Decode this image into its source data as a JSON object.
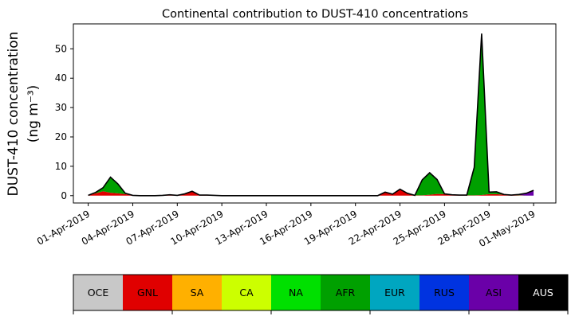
{
  "chart_data": {
    "type": "area",
    "stacked": true,
    "title": "Continental contribution to DUST-410 concentrations",
    "ylabel_line1": "DUST-410 concentration",
    "ylabel_line2": "(ng m⁻³)",
    "ylim": [
      -2.5,
      58.5
    ],
    "y_ticks": [
      0,
      10,
      20,
      30,
      40,
      50
    ],
    "xlim": [
      -1.0,
      31.5
    ],
    "x_tick_labels": [
      "01-Apr-2019",
      "04-Apr-2019",
      "07-Apr-2019",
      "10-Apr-2019",
      "13-Apr-2019",
      "16-Apr-2019",
      "19-Apr-2019",
      "22-Apr-2019",
      "25-Apr-2019",
      "28-Apr-2019",
      "01-May-2019"
    ],
    "x_start": "2019-04-01",
    "x_tick_step_days": 3,
    "x": [
      0,
      0.5,
      1,
      1.5,
      2,
      2.5,
      3,
      3.5,
      4,
      4.5,
      5,
      5.5,
      6,
      6.5,
      7,
      7.5,
      8,
      8.5,
      9,
      9.5,
      10,
      10.5,
      11,
      11.5,
      12,
      12.5,
      13,
      13.5,
      14,
      14.5,
      15,
      15.5,
      16,
      16.5,
      17,
      17.5,
      18,
      18.5,
      19,
      19.5,
      20,
      20.5,
      21,
      21.5,
      22,
      22.5,
      23,
      23.5,
      24,
      24.5,
      25,
      25.5,
      26,
      26.5,
      27,
      27.5,
      28,
      28.5,
      29,
      29.5,
      30
    ],
    "series": [
      {
        "name": "OCE",
        "color": "#c8c8c8",
        "values": [
          0,
          0,
          0,
          0,
          0,
          0,
          0,
          0,
          0,
          0,
          0,
          0,
          0,
          0,
          0,
          0,
          0,
          0,
          0,
          0,
          0,
          0,
          0,
          0,
          0,
          0,
          0,
          0,
          0,
          0,
          0,
          0,
          0,
          0,
          0,
          0,
          0,
          0,
          0,
          0,
          0,
          0,
          0,
          0,
          0,
          0,
          0,
          0,
          0,
          0,
          0,
          0,
          0,
          0,
          0,
          0,
          0,
          0,
          0,
          0,
          0
        ]
      },
      {
        "name": "GNL",
        "color": "#e00000",
        "values": [
          0.1,
          0.8,
          1.5,
          1.0,
          0.8,
          0.5,
          0.1,
          0,
          0,
          0,
          0.1,
          0.3,
          0.1,
          0.6,
          1.5,
          0.2,
          0.2,
          0.1,
          0,
          0,
          0,
          0,
          0,
          0,
          0,
          0,
          0,
          0,
          0,
          0,
          0,
          0,
          0,
          0,
          0,
          0,
          0,
          0,
          0,
          0,
          1.2,
          0.5,
          2.2,
          0.8,
          0.1,
          0.1,
          0.3,
          0.6,
          0.5,
          0.3,
          0.1,
          0.1,
          0.1,
          0.2,
          0.5,
          0.5,
          0.3,
          0.1,
          0.1,
          0,
          0
        ]
      },
      {
        "name": "SA",
        "color": "#ffb000",
        "values": [
          0,
          0,
          0,
          0,
          0,
          0,
          0,
          0,
          0,
          0,
          0,
          0,
          0,
          0,
          0,
          0,
          0,
          0,
          0,
          0,
          0,
          0,
          0,
          0,
          0,
          0,
          0,
          0,
          0,
          0,
          0,
          0,
          0,
          0,
          0,
          0,
          0,
          0,
          0,
          0,
          0,
          0,
          0,
          0,
          0,
          0,
          0,
          0,
          0,
          0,
          0,
          0,
          0,
          0,
          0,
          0,
          0,
          0,
          0,
          0,
          0
        ]
      },
      {
        "name": "CA",
        "color": "#ccff00",
        "values": [
          0,
          0,
          0,
          0,
          0,
          0,
          0,
          0,
          0,
          0,
          0,
          0,
          0,
          0,
          0,
          0,
          0,
          0,
          0,
          0,
          0,
          0,
          0,
          0,
          0,
          0,
          0,
          0,
          0,
          0,
          0,
          0,
          0,
          0,
          0,
          0,
          0,
          0,
          0,
          0,
          0,
          0,
          0,
          0,
          0,
          0,
          0,
          0,
          0,
          0,
          0,
          0,
          0,
          0,
          0,
          0,
          0,
          0,
          0,
          0,
          0
        ]
      },
      {
        "name": "NA",
        "color": "#00e000",
        "values": [
          0,
          0,
          0,
          0,
          0,
          0,
          0,
          0,
          0,
          0,
          0,
          0,
          0,
          0,
          0,
          0,
          0,
          0,
          0,
          0,
          0,
          0,
          0,
          0,
          0,
          0,
          0,
          0,
          0,
          0,
          0,
          0,
          0,
          0,
          0,
          0,
          0,
          0,
          0,
          0,
          0,
          0,
          0,
          0,
          0,
          0,
          0,
          0,
          0,
          0,
          0,
          0,
          0,
          0,
          0,
          0,
          0,
          0,
          0,
          0,
          0
        ]
      },
      {
        "name": "AFR",
        "color": "#00a000",
        "values": [
          0,
          0.3,
          1.2,
          5.3,
          3.2,
          0.3,
          0,
          0,
          0,
          0,
          0,
          0,
          0,
          0,
          0,
          0,
          0,
          0,
          0,
          0,
          0,
          0,
          0,
          0,
          0,
          0,
          0,
          0,
          0,
          0,
          0,
          0,
          0,
          0,
          0,
          0,
          0,
          0,
          0,
          0,
          0,
          0,
          0,
          0,
          0,
          5.3,
          7.5,
          4.9,
          0.1,
          0,
          0.1,
          0.1,
          9.5,
          55,
          0.7,
          0.8,
          0.1,
          0.1,
          0.1,
          0,
          0
        ]
      },
      {
        "name": "EUR",
        "color": "#00a6c0",
        "values": [
          0,
          0,
          0,
          0,
          0,
          0,
          0,
          0,
          0,
          0,
          0,
          0,
          0,
          0,
          0,
          0,
          0,
          0,
          0,
          0,
          0,
          0,
          0,
          0,
          0,
          0,
          0,
          0,
          0,
          0,
          0,
          0,
          0,
          0,
          0,
          0,
          0,
          0,
          0,
          0,
          0,
          0,
          0,
          0,
          0,
          0,
          0,
          0,
          0,
          0,
          0,
          0,
          0,
          0,
          0,
          0,
          0,
          0,
          0,
          0,
          0
        ]
      },
      {
        "name": "RUS",
        "color": "#0033e0",
        "values": [
          0,
          0,
          0,
          0,
          0,
          0,
          0,
          0,
          0,
          0,
          0,
          0,
          0,
          0,
          0,
          0,
          0,
          0,
          0,
          0,
          0,
          0,
          0,
          0,
          0,
          0,
          0,
          0,
          0,
          0,
          0,
          0,
          0,
          0,
          0,
          0,
          0,
          0,
          0,
          0,
          0,
          0,
          0,
          0,
          0,
          0,
          0,
          0,
          0,
          0,
          0,
          0,
          0,
          0,
          0,
          0,
          0,
          0,
          0,
          0,
          0
        ]
      },
      {
        "name": "ASI",
        "color": "#6a00a8",
        "values": [
          0,
          0,
          0,
          0,
          0,
          0,
          0,
          0,
          0,
          0,
          0,
          0,
          0,
          0,
          0,
          0,
          0,
          0,
          0,
          0,
          0,
          0,
          0,
          0,
          0,
          0,
          0,
          0,
          0,
          0,
          0,
          0,
          0,
          0,
          0,
          0,
          0,
          0,
          0,
          0,
          0,
          0,
          0,
          0,
          0,
          0,
          0,
          0,
          0,
          0,
          0,
          0,
          0,
          0,
          0,
          0,
          0,
          0,
          0.2,
          0.8,
          1.8
        ]
      },
      {
        "name": "AUS",
        "color": "#000000",
        "values": [
          0,
          0,
          0,
          0,
          0,
          0,
          0,
          0,
          0,
          0,
          0,
          0,
          0,
          0,
          0,
          0,
          0,
          0,
          0,
          0,
          0,
          0,
          0,
          0,
          0,
          0,
          0,
          0,
          0,
          0,
          0,
          0,
          0,
          0,
          0,
          0,
          0,
          0,
          0,
          0,
          0,
          0,
          0,
          0,
          0,
          0,
          0,
          0,
          0,
          0,
          0,
          0,
          0,
          0,
          0,
          0,
          0,
          0,
          0,
          0,
          0
        ]
      }
    ]
  },
  "legend": {
    "items": [
      {
        "label": "OCE",
        "color": "#c8c8c8",
        "text_color": "#000000"
      },
      {
        "label": "GNL",
        "color": "#e00000",
        "text_color": "#000000"
      },
      {
        "label": "SA",
        "color": "#ffb000",
        "text_color": "#000000"
      },
      {
        "label": "CA",
        "color": "#ccff00",
        "text_color": "#000000"
      },
      {
        "label": "NA",
        "color": "#00e000",
        "text_color": "#000000"
      },
      {
        "label": "AFR",
        "color": "#00a000",
        "text_color": "#000000"
      },
      {
        "label": "EUR",
        "color": "#00a6c0",
        "text_color": "#000000"
      },
      {
        "label": "RUS",
        "color": "#0033e0",
        "text_color": "#000000"
      },
      {
        "label": "ASI",
        "color": "#6a00a8",
        "text_color": "#000000"
      },
      {
        "label": "AUS",
        "color": "#000000",
        "text_color": "#ffffff"
      }
    ]
  }
}
